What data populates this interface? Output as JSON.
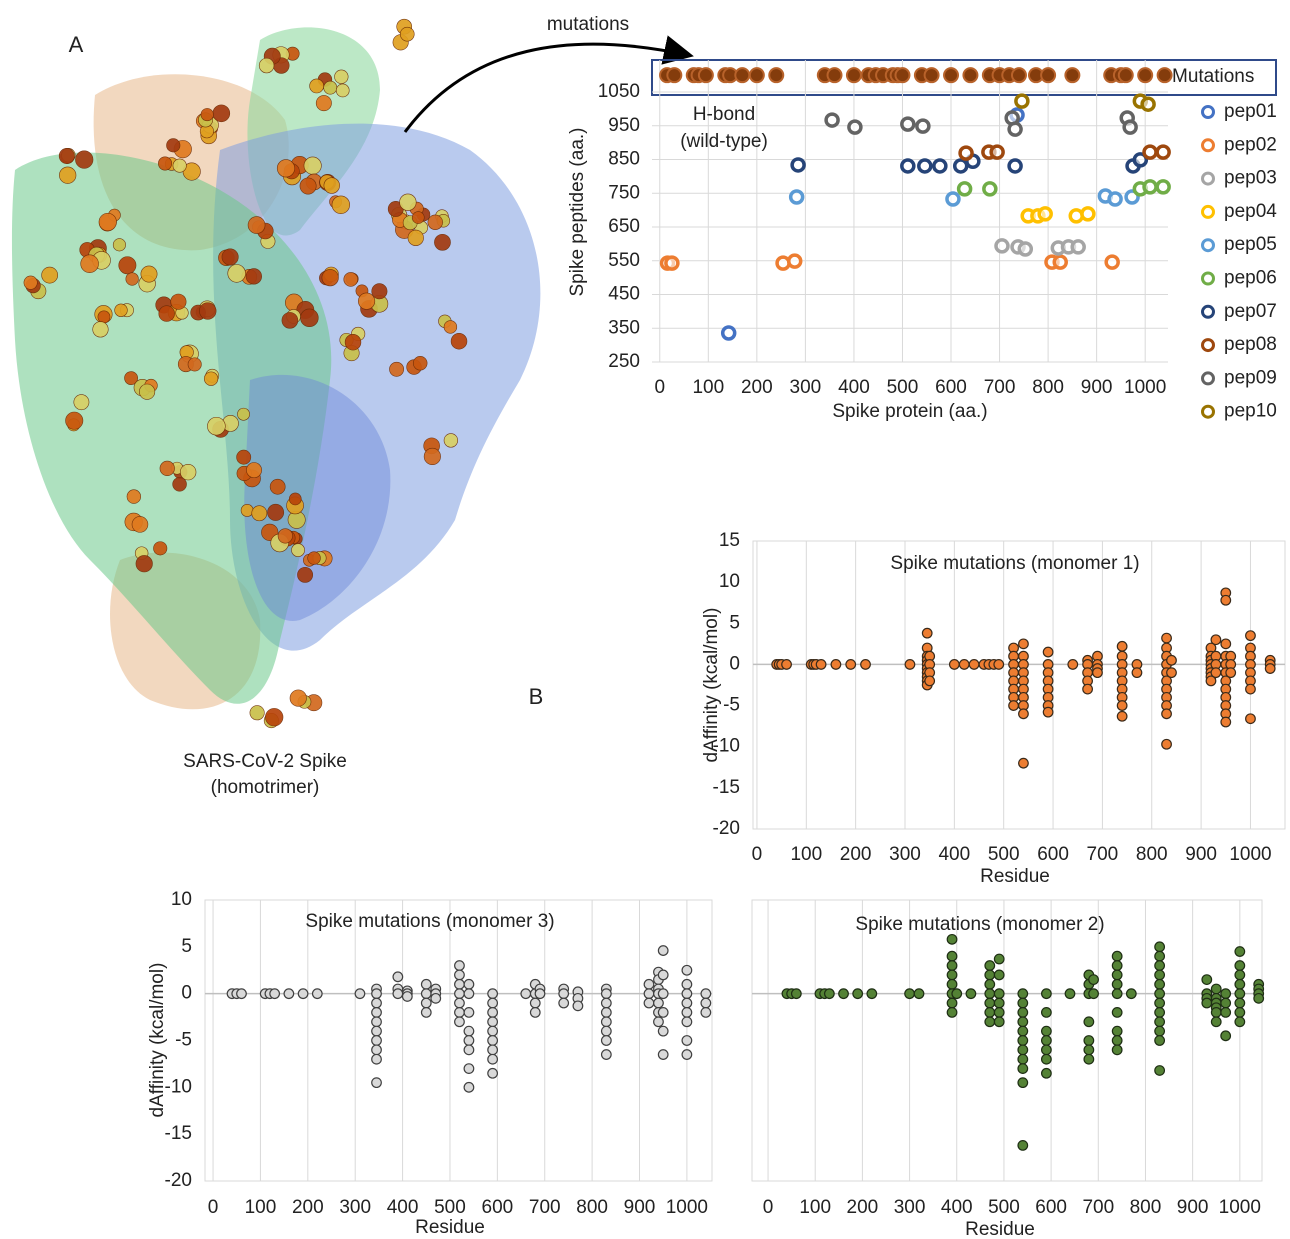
{
  "figure": {
    "panel_a": "A",
    "panel_b": "B",
    "caption_line1": "SARS-CoV-2 Spike",
    "caption_line2": "(homotrimer)",
    "arrow_label": "mutations"
  },
  "chart_data": [
    {
      "type": "scatter",
      "marker": "ring",
      "grid": "both",
      "legend": "right",
      "xlabel": "Spike protein (aa.)",
      "ylabel": "Spike peptides (aa.)",
      "annotation": [
        "H-bond",
        "(wild-type)"
      ],
      "xlim": [
        -16,
        1047
      ],
      "ylim": [
        250,
        1145
      ],
      "xticks": [
        0,
        100,
        200,
        300,
        400,
        500,
        600,
        700,
        800,
        900,
        1000
      ],
      "yticks": [
        250,
        350,
        450,
        550,
        650,
        750,
        850,
        950,
        1050
      ],
      "series": [
        {
          "name": "Mutations",
          "color": "#843c0c",
          "x": [
            15,
            30,
            70,
            80,
            95,
            135,
            145,
            170,
            200,
            240,
            340,
            360,
            400,
            430,
            445,
            460,
            480,
            490,
            500,
            540,
            560,
            600,
            640,
            680,
            700,
            720,
            740,
            775,
            800,
            850,
            930,
            950,
            960,
            1000,
            1040
          ],
          "values": [
            1100,
            1100,
            1100,
            1100,
            1100,
            1100,
            1100,
            1100,
            1100,
            1100,
            1100,
            1100,
            1100,
            1100,
            1100,
            1100,
            1100,
            1100,
            1100,
            1100,
            1100,
            1100,
            1100,
            1100,
            1100,
            1100,
            1100,
            1100,
            1100,
            1100,
            1100,
            1100,
            1100,
            1100,
            1100
          ]
        },
        {
          "name": "pep01",
          "color": "#4472c4",
          "x": [
            142,
            736
          ],
          "values": [
            336,
            982
          ]
        },
        {
          "name": "pep02",
          "color": "#ed7d31",
          "x": [
            16,
            25,
            254,
            278,
            808,
            825,
            932
          ],
          "values": [
            543,
            543,
            543,
            549,
            546,
            546,
            546
          ]
        },
        {
          "name": "pep03",
          "color": "#a5a5a5",
          "x": [
            705,
            738,
            753,
            821,
            842,
            862
          ],
          "values": [
            594,
            591,
            585,
            588,
            591,
            591
          ]
        },
        {
          "name": "pep04",
          "color": "#ffc000",
          "x": [
            759,
            779,
            794,
            858,
            882
          ],
          "values": [
            683,
            683,
            689,
            683,
            689
          ]
        },
        {
          "name": "pep05",
          "color": "#5b9bd5",
          "x": [
            282,
            604,
            918,
            938,
            973
          ],
          "values": [
            739,
            733,
            742,
            733,
            739
          ]
        },
        {
          "name": "pep06",
          "color": "#70ad47",
          "x": [
            628,
            680,
            990,
            1010,
            1037
          ],
          "values": [
            763,
            763,
            763,
            769,
            769
          ]
        },
        {
          "name": "pep07",
          "color": "#264478",
          "x": [
            285,
            511,
            546,
            577,
            620,
            645,
            732,
            975,
            990
          ],
          "values": [
            834,
            831,
            831,
            831,
            831,
            845,
            831,
            831,
            849
          ]
        },
        {
          "name": "pep08",
          "color": "#9e480e",
          "x": [
            631,
            678,
            695,
            1010,
            1037
          ],
          "values": [
            869,
            872,
            872,
            872,
            872
          ]
        },
        {
          "name": "pep09",
          "color": "#636363",
          "x": [
            355,
            402,
            511,
            542,
            726,
            732,
            963,
            969
          ],
          "values": [
            967,
            946,
            955,
            949,
            973,
            940,
            973,
            946
          ]
        },
        {
          "name": "pep10",
          "color": "#997300",
          "x": [
            746,
            990,
            1006
          ],
          "values": [
            1023,
            1023,
            1014
          ]
        }
      ]
    },
    {
      "type": "scatter",
      "marker": "filled",
      "grid": "x",
      "title": "Spike mutations (monomer 1)",
      "xlabel": "Residue",
      "ylabel": "dAffinity (kcal/mol)",
      "xlim": [
        -8,
        1070
      ],
      "ylim": [
        -20,
        15
      ],
      "xticks": [
        0,
        100,
        200,
        300,
        400,
        500,
        600,
        700,
        800,
        900,
        1000
      ],
      "yticks": [
        -20,
        -15,
        -10,
        -5,
        0,
        5,
        10,
        15
      ],
      "color": "#ed7d31",
      "edge_color": "#3a2a1a",
      "x": [
        40,
        45,
        50,
        60,
        110,
        115,
        120,
        130,
        160,
        190,
        220,
        310,
        345,
        345,
        345,
        345,
        345,
        345,
        345,
        345,
        345,
        345,
        350,
        350,
        350,
        350,
        400,
        420,
        440,
        460,
        470,
        480,
        490,
        520,
        520,
        520,
        520,
        520,
        520,
        520,
        520,
        540,
        540,
        540,
        540,
        540,
        540,
        540,
        540,
        540,
        540,
        590,
        590,
        590,
        590,
        590,
        590,
        590,
        590,
        640,
        670,
        670,
        670,
        670,
        670,
        690,
        690,
        690,
        690,
        740,
        740,
        740,
        740,
        740,
        740,
        740,
        740,
        740,
        770,
        770,
        830,
        830,
        830,
        830,
        830,
        830,
        830,
        830,
        830,
        830,
        830,
        840,
        840,
        920,
        920,
        920,
        920,
        920,
        920,
        920,
        920,
        930,
        930,
        930,
        930,
        950,
        950,
        950,
        950,
        950,
        950,
        950,
        950,
        950,
        950,
        950,
        950,
        960,
        960,
        960,
        1000,
        1000,
        1000,
        1000,
        1000,
        1000,
        1000,
        1000,
        1040,
        1040,
        1040
      ],
      "values": [
        0,
        0,
        0,
        0,
        0,
        0,
        0,
        0,
        0,
        0,
        0,
        0,
        3.8,
        2,
        1,
        0.5,
        0,
        -0.5,
        -1,
        -1.5,
        -2,
        -2.5,
        1,
        0,
        -1,
        -2,
        0,
        0,
        0,
        0,
        0,
        0,
        0,
        2,
        1,
        0,
        -1,
        -2,
        -3,
        -4,
        -5,
        2.5,
        1,
        0,
        -1,
        -2,
        -3,
        -4,
        -5,
        -6,
        -12,
        1.5,
        0,
        -1,
        -2,
        -3,
        -4,
        -5,
        -5.8,
        0,
        0.5,
        0,
        -1,
        -2,
        -3,
        1,
        0,
        -0.5,
        -1,
        2.2,
        1,
        0,
        -1,
        -2,
        -3,
        -4,
        -5,
        -6.3,
        0,
        -1,
        3.2,
        2,
        1,
        0,
        -1,
        -2,
        -3,
        -4,
        -5,
        -6,
        -9.7,
        0.5,
        -1,
        2,
        1,
        0.5,
        0,
        -0.5,
        -1,
        -1.5,
        -2,
        3,
        1,
        0,
        -1,
        8.7,
        7.8,
        2.5,
        1,
        0,
        -1,
        -2,
        -3,
        -4,
        -5,
        -6,
        -7,
        1,
        0,
        -1,
        3.5,
        2,
        1,
        0,
        -1,
        -2,
        -3,
        -6.6,
        0.5,
        0,
        -0.5
      ]
    },
    {
      "type": "scatter",
      "marker": "filled",
      "grid": "x",
      "title": "Spike mutations (monomer 3)",
      "xlabel": "Residue",
      "ylabel": "dAffinity (kcal/mol)",
      "xlim": [
        -17,
        1053
      ],
      "ylim": [
        -20,
        10
      ],
      "xticks": [
        0,
        100,
        200,
        300,
        400,
        500,
        600,
        700,
        800,
        900,
        1000
      ],
      "yticks": [
        -20,
        -15,
        -10,
        -5,
        0,
        5,
        10
      ],
      "color": "#d9d9d9",
      "edge_color": "#404040",
      "x": [
        40,
        50,
        60,
        110,
        120,
        130,
        160,
        190,
        220,
        310,
        345,
        345,
        345,
        345,
        345,
        345,
        345,
        345,
        345,
        345,
        390,
        390,
        390,
        410,
        410,
        410,
        450,
        450,
        450,
        450,
        470,
        470,
        470,
        520,
        520,
        520,
        520,
        520,
        520,
        520,
        540,
        540,
        540,
        540,
        540,
        540,
        540,
        540,
        590,
        590,
        590,
        590,
        590,
        590,
        590,
        590,
        590,
        660,
        680,
        680,
        680,
        680,
        690,
        690,
        740,
        740,
        740,
        770,
        770,
        770,
        830,
        830,
        830,
        830,
        830,
        830,
        830,
        830,
        920,
        920,
        920,
        940,
        940,
        940,
        940,
        940,
        940,
        940,
        950,
        950,
        950,
        950,
        950,
        950,
        1000,
        1000,
        1000,
        1000,
        1000,
        1000,
        1000,
        1000,
        1040,
        1040,
        1040
      ],
      "values": [
        0,
        0,
        0,
        0,
        0,
        0,
        0,
        0,
        0,
        0,
        0.5,
        0,
        -1,
        -2,
        -3,
        -4,
        -5,
        -6,
        -7,
        -9.5,
        1.8,
        0.5,
        0,
        0.3,
        0,
        -0.3,
        1,
        0,
        -1,
        -2,
        0.5,
        0,
        -0.5,
        3,
        2,
        1,
        0,
        -1,
        -2,
        -3,
        1,
        0,
        -2,
        -4,
        -5,
        -6,
        -8,
        -10,
        0,
        -1,
        -2,
        -3,
        -4,
        -5,
        -6,
        -7,
        -8.5,
        0,
        1,
        0,
        -1,
        -2,
        0.5,
        0,
        0.5,
        0,
        -1,
        0.2,
        -0.5,
        -1.3,
        0.5,
        0,
        -1,
        -2,
        -3,
        -4,
        -5,
        -6.5,
        1,
        0,
        -1,
        2.3,
        1.5,
        0.5,
        0,
        -1,
        -2,
        -3,
        4.6,
        2,
        0,
        -2,
        -4,
        -6.5,
        2.5,
        1,
        0,
        -1,
        -2,
        -3,
        -5,
        -6.5,
        0,
        -1,
        -2
      ]
    },
    {
      "type": "scatter",
      "marker": "filled",
      "grid": "x",
      "title": "Spike mutations (monomer 2)",
      "xlabel": "Residue",
      "xlim": [
        -34,
        1047
      ],
      "ylim": [
        -20,
        10
      ],
      "xticks": [
        0,
        100,
        200,
        300,
        400,
        500,
        600,
        700,
        800,
        900,
        1000
      ],
      "color": "#548235",
      "edge_color": "#1e2e14",
      "x": [
        40,
        50,
        60,
        110,
        120,
        130,
        160,
        190,
        220,
        300,
        320,
        390,
        390,
        390,
        390,
        390,
        390,
        390,
        390,
        400,
        430,
        470,
        470,
        470,
        470,
        470,
        470,
        470,
        490,
        490,
        490,
        490,
        490,
        490,
        540,
        540,
        540,
        540,
        540,
        540,
        540,
        540,
        540,
        540,
        540,
        590,
        590,
        590,
        590,
        590,
        590,
        590,
        640,
        680,
        680,
        680,
        680,
        680,
        680,
        680,
        690,
        690,
        740,
        740,
        740,
        740,
        740,
        740,
        740,
        740,
        740,
        770,
        830,
        830,
        830,
        830,
        830,
        830,
        830,
        830,
        830,
        830,
        830,
        830,
        930,
        930,
        930,
        930,
        950,
        950,
        950,
        950,
        950,
        950,
        970,
        970,
        970,
        970,
        1000,
        1000,
        1000,
        1000,
        1000,
        1000,
        1000,
        1000,
        1040,
        1040,
        1040,
        1040
      ],
      "values": [
        0,
        0,
        0,
        0,
        0,
        0,
        0,
        0,
        0,
        0,
        0,
        5.8,
        4,
        3,
        2,
        1,
        0,
        -1,
        -2,
        0,
        0,
        3,
        2,
        1,
        0,
        -1,
        -2,
        -3,
        3.7,
        2,
        0,
        -1,
        -2,
        -3,
        0,
        -1,
        -2,
        -3,
        -4,
        -5,
        -6,
        -7,
        -8,
        -9.5,
        -16.2,
        0,
        -2,
        -4,
        -5,
        -6,
        -7,
        -8.5,
        0,
        2,
        1,
        0,
        -3,
        -5,
        -6,
        -7,
        1.5,
        0,
        4,
        3,
        2,
        1,
        0,
        -2,
        -4,
        -5,
        -6,
        0,
        5,
        4,
        3,
        2,
        1,
        0,
        -1,
        -2,
        -3,
        -4,
        -5,
        -8.2,
        1.5,
        0,
        -0.5,
        -1,
        0.5,
        -0.5,
        -1,
        -1.5,
        -2,
        -3,
        0,
        -1,
        -2,
        -4.5,
        4.5,
        3,
        2,
        1,
        0,
        -1,
        -2,
        -3,
        1,
        0.5,
        0,
        -0.5
      ]
    }
  ]
}
